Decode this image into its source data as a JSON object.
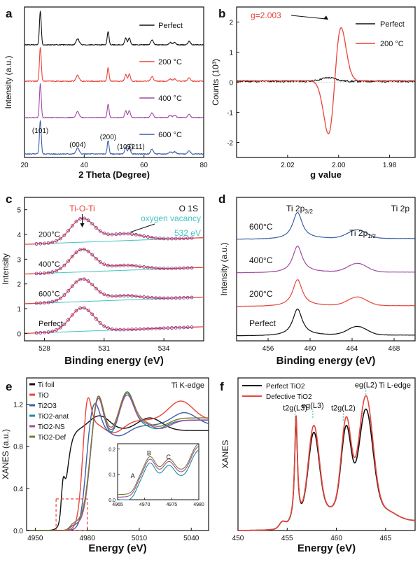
{
  "chart_data": [
    {
      "id": "a",
      "type": "line",
      "panel_label": "a",
      "xlabel": "2 Theta (Degree)",
      "ylabel": "Intensity (a.u.)",
      "xlim": [
        20,
        80
      ],
      "x_ticks": [
        "20",
        "40",
        "60",
        "80"
      ],
      "series": [
        {
          "name": "600 °C",
          "color": "#3b5fa8"
        },
        {
          "name": "400 °C",
          "color": "#a24aa6"
        },
        {
          "name": "200 °C",
          "color": "#e8453a"
        },
        {
          "name": "Perfect",
          "color": "#111111"
        }
      ],
      "peak_labels": [
        "(101)",
        "(004)",
        "(200)",
        "(105)",
        "(211)"
      ],
      "peaks": [
        {
          "x": 25.3,
          "h": 1.0,
          "w": 0.3
        },
        {
          "x": 37.8,
          "h": 0.18,
          "w": 0.5
        },
        {
          "x": 48.0,
          "h": 0.4,
          "w": 0.3
        },
        {
          "x": 53.9,
          "h": 0.2,
          "w": 0.35
        },
        {
          "x": 55.1,
          "h": 0.21,
          "w": 0.35
        },
        {
          "x": 62.7,
          "h": 0.14,
          "w": 0.45
        },
        {
          "x": 68.8,
          "h": 0.07,
          "w": 0.45
        },
        {
          "x": 70.3,
          "h": 0.07,
          "w": 0.45
        },
        {
          "x": 75.1,
          "h": 0.1,
          "w": 0.45
        }
      ]
    },
    {
      "id": "b",
      "type": "line",
      "panel_label": "b",
      "xlabel": "g value",
      "ylabel": "Counts (10³)",
      "xlim": [
        2.04,
        1.97
      ],
      "ylim": [
        -2.5,
        2.5
      ],
      "x_ticks": [
        "2.02",
        "2.00",
        "1.98"
      ],
      "y_ticks": [
        "-2",
        "-1",
        "0",
        "1",
        "2"
      ],
      "annotation": "g=2.003",
      "series": [
        {
          "name": "Perfect",
          "color": "#111111"
        },
        {
          "name": "200 °C",
          "color": "#e8453a"
        }
      ]
    },
    {
      "id": "c",
      "type": "line",
      "panel_label": "c",
      "xlabel": "Binding energy (eV)",
      "ylabel": "Intensity",
      "xlim": [
        527,
        536
      ],
      "ylim": [
        -0.3,
        5.5
      ],
      "x_ticks": [
        "528",
        "531",
        "534"
      ],
      "y_ticks": [
        "0",
        "1",
        "2",
        "3",
        "4",
        "5"
      ],
      "annotations": {
        "peak_main": "Ti-O-Ti",
        "core_level": "O 1S",
        "vacancy": "oxygen vacancy",
        "vacancy_energy": "532 eV"
      },
      "series": [
        {
          "name": "200°C",
          "offset": 3.6,
          "amp": 0.95,
          "vac": 0.28
        },
        {
          "name": "400°C",
          "offset": 2.4,
          "amp": 0.9,
          "vac": 0.2
        },
        {
          "name": "600°C",
          "offset": 1.2,
          "amp": 0.9,
          "vac": 0.17
        },
        {
          "name": "Perfect",
          "offset": 0.0,
          "amp": 0.95,
          "vac": 0.0
        }
      ]
    },
    {
      "id": "d",
      "type": "line",
      "panel_label": "d",
      "xlabel": "Binding energy (eV)",
      "ylabel": "Intensity (a.u.)",
      "xlim": [
        453,
        470
      ],
      "x_ticks": [
        "456",
        "460",
        "464",
        "468"
      ],
      "annotations": {
        "p32": "Ti 2p3/2",
        "p12": "Ti 2p1/2",
        "core_level": "Ti 2p"
      },
      "series": [
        {
          "name": "600°C",
          "color": "#3b5fa8"
        },
        {
          "name": "400°C",
          "color": "#a24aa6"
        },
        {
          "name": "200°C",
          "color": "#e8453a"
        },
        {
          "name": "Perfect",
          "color": "#111111"
        }
      ]
    },
    {
      "id": "e",
      "type": "line",
      "panel_label": "e",
      "xlabel": "Energy (eV)",
      "ylabel": "XANES (a.u.)",
      "xlim": [
        4945,
        5050
      ],
      "ylim": [
        0,
        1.45
      ],
      "x_ticks": [
        "4950",
        "4980",
        "5010",
        "5040"
      ],
      "y_ticks": [
        "0.0",
        "0.4",
        "0.8",
        "1.2"
      ],
      "corner_label": "Ti K-edge",
      "series": [
        {
          "name": "Ti foil",
          "color": "#111111"
        },
        {
          "name": "TiO",
          "color": "#e8453a"
        },
        {
          "name": "Ti2O3",
          "color": "#3b5fa8"
        },
        {
          "name": "TiO2-anat",
          "color": "#1f8f8f"
        },
        {
          "name": "TiO2-NS",
          "color": "#a24aa6"
        },
        {
          "name": "TiO2-Def",
          "color": "#7a7a2e"
        }
      ],
      "inset": {
        "xlim": [
          4965,
          4980
        ],
        "ylim": [
          0,
          0.22
        ],
        "x_ticks": [
          "4965",
          "4970",
          "4975",
          "4980"
        ],
        "y_ticks": [
          "0.0",
          "0.1",
          "0.2"
        ],
        "labels": [
          "A",
          "B",
          "C"
        ]
      }
    },
    {
      "id": "f",
      "type": "line",
      "panel_label": "f",
      "xlabel": "Energy (eV)",
      "ylabel": "XANES",
      "xlim": [
        450,
        468
      ],
      "x_ticks": [
        "450",
        "455",
        "460",
        "465"
      ],
      "corner_label": "Ti L-edge",
      "peak_labels": [
        "t2g(L3)",
        "eg(L3)",
        "t2g(L2)",
        "eg(L2)"
      ],
      "series": [
        {
          "name": "Perfect TiO2",
          "color": "#111111"
        },
        {
          "name": "Defective TiO2",
          "color": "#e8453a"
        }
      ]
    }
  ]
}
